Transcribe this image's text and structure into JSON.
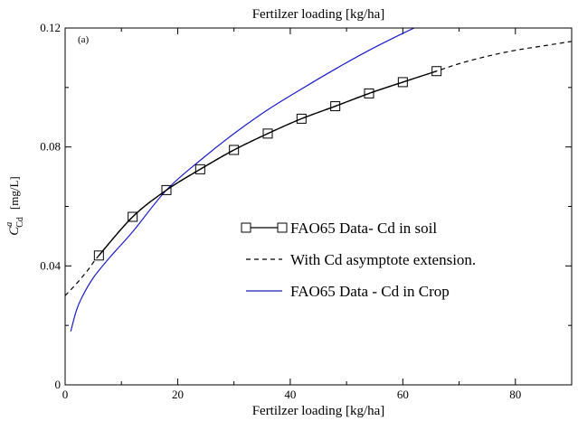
{
  "chart_data": {
    "type": "line",
    "title": "Fertilzer loading [kg/ha]",
    "xlabel": "Fertilzer loading [kg/ha]",
    "ylabel": {
      "main": "C",
      "superscript": "a",
      "subscript": "Cd",
      "unit": "[mg/L]"
    },
    "panel_label": "(a)",
    "xlim": [
      0,
      90
    ],
    "ylim": [
      0,
      0.12
    ],
    "xticks": [
      0,
      20,
      40,
      60,
      80
    ],
    "yticks": [
      0,
      0.04,
      0.08,
      0.12
    ],
    "xtick_labels": [
      "0",
      "20",
      "40",
      "60",
      "80"
    ],
    "ytick_labels": [
      "0",
      "0.04",
      "0.08",
      "0.12"
    ],
    "legend_position": "center-right",
    "series": [
      {
        "name": "FAO65 Data- Cd in soil",
        "style": "solid-square-markers",
        "color": "#000000",
        "x": [
          6,
          12,
          18,
          24,
          30,
          36,
          42,
          48,
          54,
          60,
          66
        ],
        "y": [
          0.0435,
          0.0565,
          0.0655,
          0.0725,
          0.079,
          0.0845,
          0.0895,
          0.0937,
          0.098,
          0.1018,
          0.1055
        ]
      },
      {
        "name": "With Cd asymptote extension.",
        "style": "dashed",
        "color": "#000000",
        "x": [
          0,
          2,
          4,
          6,
          12,
          18,
          24,
          30,
          36,
          42,
          48,
          54,
          60,
          66,
          70,
          75,
          80,
          85,
          90
        ],
        "y": [
          0.03,
          0.034,
          0.0385,
          0.0435,
          0.0565,
          0.0655,
          0.0725,
          0.079,
          0.0845,
          0.0895,
          0.0937,
          0.098,
          0.1018,
          0.1055,
          0.108,
          0.1105,
          0.1125,
          0.114,
          0.1155
        ]
      },
      {
        "name": "FAO65 Data - Cd in Crop",
        "style": "solid",
        "color": "#1a1acc",
        "x": [
          1,
          2,
          3,
          5,
          8,
          12,
          18,
          24,
          30,
          36,
          42,
          48,
          54,
          60,
          66,
          70
        ],
        "y": [
          0.018,
          0.025,
          0.0295,
          0.036,
          0.043,
          0.0515,
          0.0655,
          0.0755,
          0.0845,
          0.0925,
          0.0995,
          0.1062,
          0.1125,
          0.1182,
          0.1235,
          0.127
        ]
      }
    ]
  }
}
